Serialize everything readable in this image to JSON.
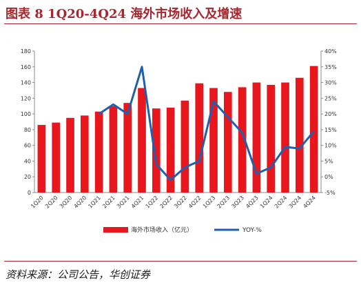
{
  "header": {
    "title": "图表 8   1Q20-4Q24 海外市场收入及增速"
  },
  "footer": {
    "source": "资料来源：公司公告，华创证券"
  },
  "colors": {
    "bar": "#e8171d",
    "line": "#1f5fb0",
    "accent": "#a8262e"
  },
  "chart_data": {
    "type": "bar",
    "categories": [
      "1Q20",
      "2Q20",
      "3Q20",
      "4Q20",
      "1Q21",
      "2Q21",
      "3Q21",
      "4Q21",
      "1Q22",
      "2Q22",
      "3Q22",
      "4Q22",
      "1Q23",
      "2Q23",
      "3Q23",
      "4Q23",
      "1Q24",
      "2Q24",
      "3Q24",
      "4Q24"
    ],
    "series": [
      {
        "name": "海外市场收入（亿元）",
        "type": "bar",
        "axis": "left",
        "values": [
          86,
          89,
          95,
          98,
          103,
          110,
          114,
          133,
          107,
          108,
          117,
          139,
          133,
          128,
          134,
          140,
          137,
          140,
          146,
          161
        ]
      },
      {
        "name": "YOY-%",
        "type": "line",
        "axis": "right",
        "values": [
          null,
          null,
          null,
          null,
          20,
          23,
          20,
          35,
          4,
          -1,
          3,
          5,
          24,
          19,
          14,
          1,
          3,
          9.5,
          9,
          14.5
        ]
      }
    ],
    "y_left": {
      "min": 0,
      "max": 180,
      "step": 20,
      "ticks": [
        "0",
        "20",
        "40",
        "60",
        "80",
        "100",
        "120",
        "140",
        "160",
        "180"
      ]
    },
    "y_right": {
      "min": -5,
      "max": 40,
      "step": 5,
      "ticks": [
        "-5%",
        "0%",
        "5%",
        "10%",
        "15%",
        "20%",
        "25%",
        "30%",
        "35%",
        "40%"
      ]
    },
    "grid": false,
    "legend": "bottom"
  }
}
